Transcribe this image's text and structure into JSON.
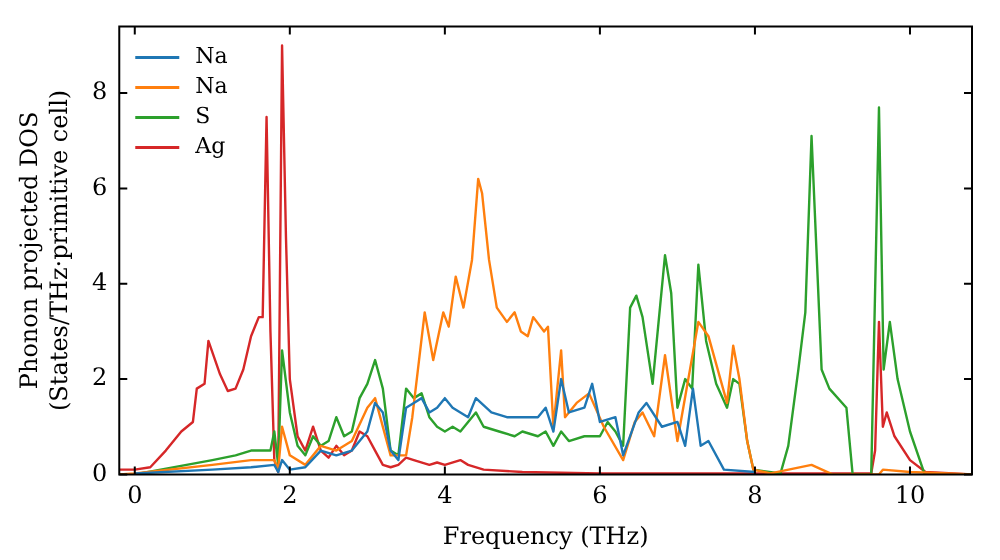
{
  "chart_data": {
    "type": "line",
    "xlabel": "Frequency (THz)",
    "ylabel": "Phonon projected DOS\n(States/THz·primitive cell)",
    "xlim": [
      -0.2,
      10.8
    ],
    "ylim": [
      0,
      9.4
    ],
    "xticks": [
      0,
      2,
      4,
      6,
      8,
      10
    ],
    "yticks": [
      0,
      2,
      4,
      6,
      8
    ],
    "grid": false,
    "legend": "top left",
    "marker": "none",
    "line_style": "solid",
    "series": [
      {
        "name": "Na",
        "color": "#1f77b4",
        "x": [
          0,
          1,
          1.5,
          1.8,
          1.85,
          1.9,
          2,
          2.2,
          2.4,
          2.6,
          2.8,
          3,
          3.1,
          3.2,
          3.3,
          3.4,
          3.5,
          3.6,
          3.7,
          3.8,
          3.9,
          4,
          4.1,
          4.2,
          4.3,
          4.4,
          4.6,
          4.8,
          5,
          5.2,
          5.3,
          5.4,
          5.5,
          5.6,
          5.8,
          5.9,
          6,
          6.2,
          6.3,
          6.5,
          6.6,
          6.8,
          7,
          7.1,
          7.2,
          7.3,
          7.4,
          7.6,
          8
        ],
        "values": [
          0.02,
          0.1,
          0.15,
          0.2,
          0.05,
          0.3,
          0.1,
          0.15,
          0.5,
          0.4,
          0.5,
          0.9,
          1.5,
          1.3,
          0.5,
          0.3,
          1.4,
          1.5,
          1.6,
          1.3,
          1.4,
          1.6,
          1.4,
          1.3,
          1.2,
          1.6,
          1.3,
          1.2,
          1.2,
          1.2,
          1.4,
          0.9,
          2,
          1.3,
          1.4,
          1.9,
          1.1,
          1.2,
          0.4,
          1.3,
          1.5,
          1,
          1.1,
          0.6,
          1.8,
          0.6,
          0.7,
          0.1,
          0.05
        ]
      },
      {
        "name": "Na",
        "color": "#ff7f0e",
        "x": [
          -0.2,
          0,
          1,
          1.5,
          1.8,
          1.85,
          1.9,
          2,
          2.2,
          2.4,
          2.6,
          2.8,
          3,
          3.1,
          3.3,
          3.5,
          3.58,
          3.74,
          3.85,
          3.98,
          4.05,
          4.14,
          4.24,
          4.35,
          4.43,
          4.48,
          4.57,
          4.67,
          4.8,
          4.9,
          4.98,
          5.07,
          5.14,
          5.28,
          5.33,
          5.4,
          5.5,
          5.55,
          5.7,
          5.86,
          6.05,
          6.3,
          6.45,
          6.55,
          6.7,
          6.84,
          7,
          7.27,
          7.4,
          7.64,
          7.72,
          7.8,
          7.9,
          7.98,
          8.2,
          8.73,
          9,
          9.6,
          9.65,
          10,
          10.8
        ],
        "values": [
          0,
          0.02,
          0.2,
          0.3,
          0.3,
          0.1,
          1,
          0.4,
          0.2,
          0.6,
          0.5,
          0.7,
          1.4,
          1.6,
          0.4,
          0.4,
          1.2,
          3.4,
          2.4,
          3.4,
          3.1,
          4.15,
          3.5,
          4.5,
          6.2,
          5.9,
          4.5,
          3.5,
          3.2,
          3.4,
          3,
          2.9,
          3.3,
          3,
          3.1,
          1,
          2.6,
          1.2,
          1.5,
          1.7,
          1,
          0.3,
          1.1,
          1.3,
          0.8,
          2.5,
          0.7,
          3.2,
          2.9,
          1.5,
          2.7,
          2,
          0.7,
          0.1,
          0.02,
          0.2,
          0,
          0,
          0.1,
          0.05,
          0
        ]
      },
      {
        "name": "S",
        "color": "#2ca02c",
        "x": [
          -0.2,
          0,
          1,
          1.3,
          1.5,
          1.75,
          1.8,
          1.85,
          1.9,
          2,
          2.1,
          2.2,
          2.3,
          2.4,
          2.5,
          2.6,
          2.7,
          2.8,
          2.9,
          3,
          3.1,
          3.2,
          3.3,
          3.4,
          3.5,
          3.6,
          3.7,
          3.8,
          3.9,
          4,
          4.1,
          4.2,
          4.3,
          4.4,
          4.5,
          4.7,
          4.9,
          5,
          5.2,
          5.3,
          5.4,
          5.5,
          5.6,
          5.8,
          6,
          6.1,
          6.2,
          6.3,
          6.39,
          6.47,
          6.55,
          6.68,
          6.84,
          6.92,
          7,
          7.1,
          7.19,
          7.27,
          7.37,
          7.5,
          7.64,
          7.72,
          7.8,
          7.9,
          7.98,
          8.33,
          8.43,
          8.56,
          8.65,
          8.73,
          8.86,
          8.96,
          9.18,
          9.26,
          9.5,
          9.6,
          9.66,
          9.74,
          9.84,
          10,
          10.19,
          10.8
        ],
        "values": [
          0,
          0,
          0.3,
          0.4,
          0.5,
          0.5,
          0.9,
          0.2,
          2.6,
          1.3,
          0.6,
          0.4,
          0.8,
          0.6,
          0.7,
          1.2,
          0.8,
          0.9,
          1.6,
          1.9,
          2.4,
          1.8,
          0.5,
          0.4,
          1.8,
          1.6,
          1.7,
          1.2,
          1,
          0.9,
          1,
          0.9,
          1.1,
          1.3,
          1,
          0.9,
          0.8,
          0.9,
          0.8,
          0.9,
          0.6,
          0.9,
          0.7,
          0.8,
          0.8,
          1.1,
          0.9,
          0.6,
          3.5,
          3.75,
          3.3,
          1.9,
          4.6,
          3.8,
          1.4,
          2,
          1.8,
          4.4,
          2.8,
          1.9,
          1.4,
          2,
          1.9,
          0.7,
          0.1,
          0.02,
          0.6,
          2.2,
          3.4,
          7.1,
          2.2,
          1.8,
          1.4,
          0,
          0,
          7.7,
          2.2,
          3.2,
          2,
          0.9,
          0,
          0
        ]
      },
      {
        "name": "Ag",
        "color": "#d62728",
        "x": [
          -0.2,
          0,
          0.2,
          0.4,
          0.6,
          0.75,
          0.8,
          0.9,
          0.95,
          1.1,
          1.2,
          1.3,
          1.4,
          1.5,
          1.6,
          1.65,
          1.7,
          1.75,
          1.8,
          1.85,
          1.9,
          1.95,
          2,
          2.1,
          2.2,
          2.3,
          2.4,
          2.5,
          2.6,
          2.7,
          2.8,
          2.9,
          3,
          3.1,
          3.2,
          3.3,
          3.4,
          3.5,
          3.6,
          3.8,
          3.9,
          4,
          4.2,
          4.3,
          4.5,
          5,
          6,
          8,
          9.5,
          9.55,
          9.6,
          9.65,
          9.7,
          9.8,
          10,
          10.2,
          10.8
        ],
        "values": [
          0.1,
          0.1,
          0.15,
          0.5,
          0.9,
          1.1,
          1.8,
          1.9,
          2.8,
          2.1,
          1.75,
          1.8,
          2.2,
          2.9,
          3.3,
          3.3,
          7.5,
          3,
          0.3,
          0.05,
          9,
          5,
          2,
          0.8,
          0.5,
          1,
          0.5,
          0.35,
          0.6,
          0.4,
          0.5,
          0.9,
          0.8,
          0.5,
          0.2,
          0.15,
          0.2,
          0.35,
          0.3,
          0.2,
          0.25,
          0.2,
          0.3,
          0.2,
          0.1,
          0.05,
          0.02,
          0.02,
          0.02,
          0.5,
          3.2,
          1,
          1.3,
          0.8,
          0.3,
          0.05,
          0
        ]
      }
    ]
  }
}
